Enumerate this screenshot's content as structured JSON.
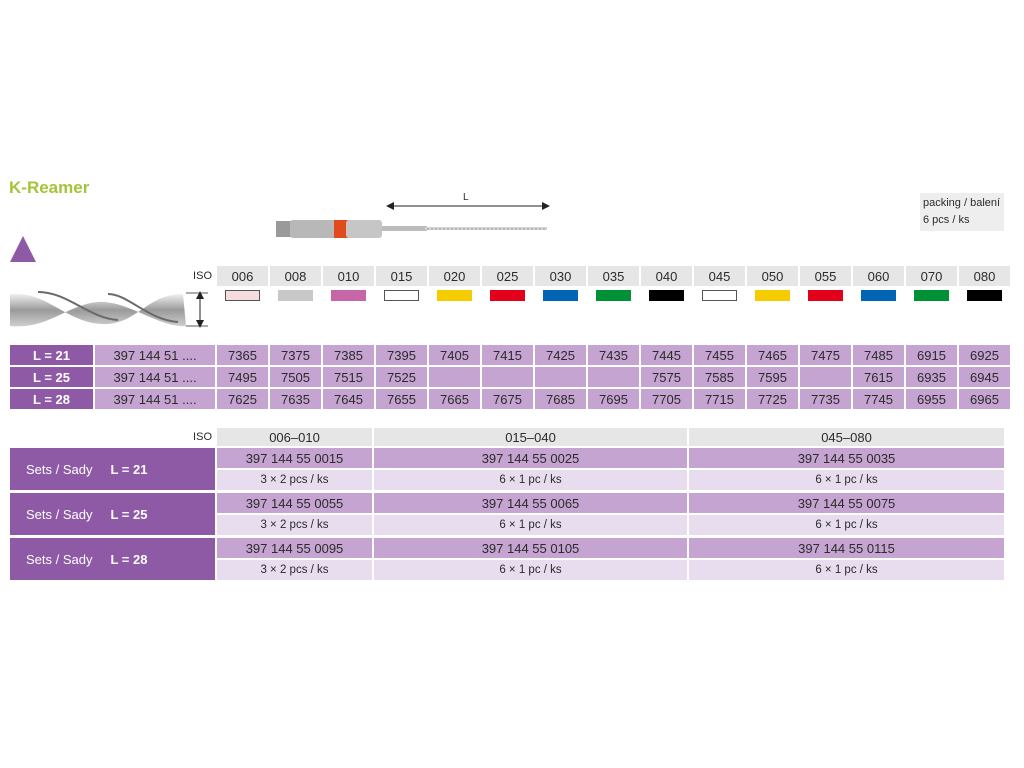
{
  "title": "K-Reamer",
  "packing": {
    "line1": "packing / balení",
    "line2": "6 pcs / ks"
  },
  "dimension_label": "L",
  "iso_label": "ISO",
  "sizes": [
    "006",
    "008",
    "010",
    "015",
    "020",
    "025",
    "030",
    "035",
    "040",
    "045",
    "050",
    "055",
    "060",
    "070",
    "080"
  ],
  "size_colors": [
    "#f6dcdc",
    "#c8c8c8",
    "#c766a6",
    "#ffffff",
    "#f5cc00",
    "#e3001b",
    "#0066b3",
    "#009036",
    "#000000",
    "#ffffff",
    "#f5cc00",
    "#e3001b",
    "#0066b3",
    "#009036",
    "#000000"
  ],
  "lengths": [
    {
      "label": "L = 21",
      "code": "397 144 51 ....",
      "values": [
        "7365",
        "7375",
        "7385",
        "7395",
        "7405",
        "7415",
        "7425",
        "7435",
        "7445",
        "7455",
        "7465",
        "7475",
        "7485",
        "6915",
        "6925"
      ]
    },
    {
      "label": "L = 25",
      "code": "397 144 51 ....",
      "values": [
        "7495",
        "7505",
        "7515",
        "7525",
        "",
        "",
        "",
        "",
        "7575",
        "7585",
        "7595",
        "",
        "7615",
        "6935",
        "6945"
      ]
    },
    {
      "label": "L = 28",
      "code": "397 144 51 ....",
      "values": [
        "7625",
        "7635",
        "7645",
        "7655",
        "7665",
        "7675",
        "7685",
        "7695",
        "7705",
        "7715",
        "7725",
        "7735",
        "7745",
        "6955",
        "6965"
      ]
    }
  ],
  "sets_header": {
    "iso": "ISO",
    "ranges": [
      "006–010",
      "015–040",
      "045–080"
    ]
  },
  "sets": [
    {
      "label": "Sets / Sady",
      "length": "L = 21",
      "codes": [
        "397 144 55 0015",
        "397 144 55 0025",
        "397 144 55 0035"
      ],
      "packs": [
        "3 × 2 pcs / ks",
        "6 × 1 pc / ks",
        "6 × 1 pc / ks"
      ]
    },
    {
      "label": "Sets / Sady",
      "length": "L = 25",
      "codes": [
        "397 144 55 0055",
        "397 144 55 0065",
        "397 144 55 0075"
      ],
      "packs": [
        "3 × 2 pcs / ks",
        "6 × 1 pc / ks",
        "6 × 1 pc / ks"
      ]
    },
    {
      "label": "Sets / Sady",
      "length": "L = 28",
      "codes": [
        "397 144 55 0095",
        "397 144 55 0105",
        "397 144 55 0115"
      ],
      "packs": [
        "3 × 2 pcs / ks",
        "6 × 1 pc / ks",
        "6 × 1 pc / ks"
      ]
    }
  ]
}
